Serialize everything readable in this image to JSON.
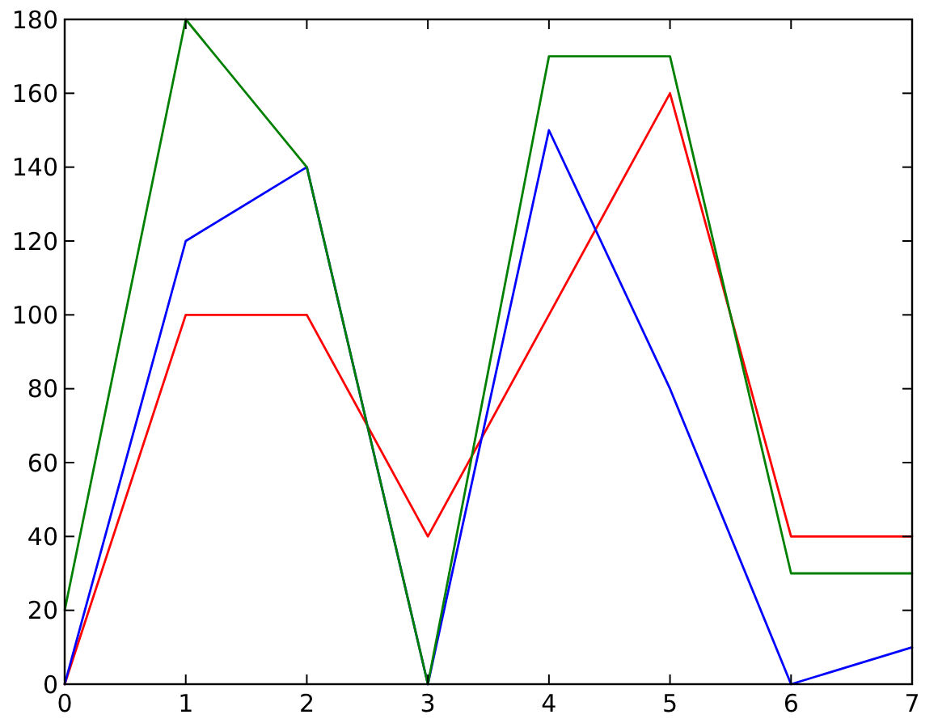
{
  "chart_data": {
    "type": "line",
    "x": [
      0,
      1,
      2,
      3,
      4,
      5,
      6,
      7
    ],
    "series": [
      {
        "color": "#ff0000",
        "values": [
          0,
          100,
          100,
          40,
          100,
          160,
          40,
          40
        ]
      },
      {
        "color": "#0000ff",
        "values": [
          0,
          120,
          140,
          0,
          150,
          80,
          0,
          10
        ]
      },
      {
        "color": "#008000",
        "values": [
          20,
          180,
          140,
          0,
          170,
          170,
          30,
          30
        ]
      }
    ],
    "xlim": [
      0,
      7
    ],
    "xticks": [
      0,
      1,
      2,
      3,
      4,
      5,
      6,
      7
    ],
    "ylim": [
      0,
      180
    ],
    "yticks": [
      0,
      20,
      40,
      60,
      80,
      100,
      120,
      140,
      160,
      180
    ],
    "grid": false,
    "marker": "none",
    "line_style": "solid"
  }
}
